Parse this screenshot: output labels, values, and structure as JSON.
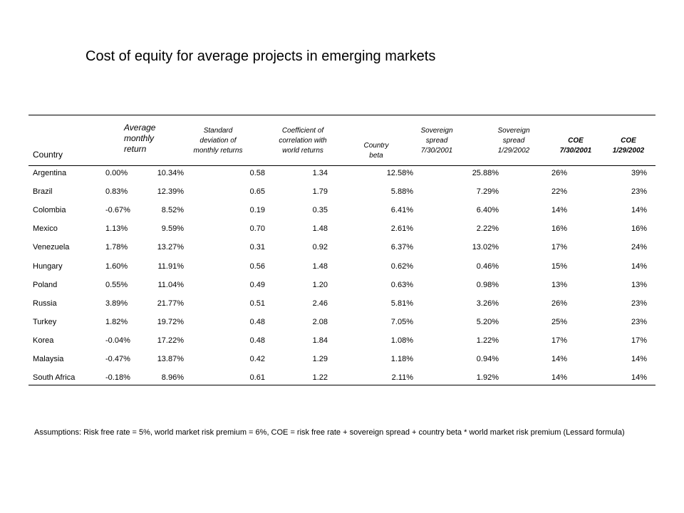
{
  "title": "Cost of equity for average projects in emerging markets",
  "columns": {
    "country": "Country",
    "avg_return": [
      "Average",
      "monthly",
      "return"
    ],
    "std_dev": [
      "Standard",
      "deviation of",
      "monthly returns"
    ],
    "correlation": [
      "Coefficient of",
      "correlation with",
      "world returns"
    ],
    "beta": [
      "Country",
      "beta"
    ],
    "spread_2001": [
      "Sovereign",
      "spread",
      "7/30/2001"
    ],
    "spread_2002": [
      "Sovereign",
      "spread",
      "1/29/2002"
    ],
    "coe_2001": [
      "COE",
      "7/30/2001"
    ],
    "coe_2002": [
      "COE",
      "1/29/2002"
    ]
  },
  "rows": [
    [
      "Argentina",
      "0.00%",
      "10.34%",
      "0.58",
      "1.34",
      "12.58%",
      "25.88%",
      "26%",
      "39%"
    ],
    [
      "Brazil",
      "0.83%",
      "12.39%",
      "0.65",
      "1.79",
      "5.88%",
      "7.29%",
      "22%",
      "23%"
    ],
    [
      "Colombia",
      "-0.67%",
      "8.52%",
      "0.19",
      "0.35",
      "6.41%",
      "6.40%",
      "14%",
      "14%"
    ],
    [
      "Mexico",
      "1.13%",
      "9.59%",
      "0.70",
      "1.48",
      "2.61%",
      "2.22%",
      "16%",
      "16%"
    ],
    [
      "Venezuela",
      "1.78%",
      "13.27%",
      "0.31",
      "0.92",
      "6.37%",
      "13.02%",
      "17%",
      "24%"
    ],
    [
      "Hungary",
      "1.60%",
      "11.91%",
      "0.56",
      "1.48",
      "0.62%",
      "0.46%",
      "15%",
      "14%"
    ],
    [
      "Poland",
      "0.55%",
      "11.04%",
      "0.49",
      "1.20",
      "0.63%",
      "0.98%",
      "13%",
      "13%"
    ],
    [
      "Russia",
      "3.89%",
      "21.77%",
      "0.51",
      "2.46",
      "5.81%",
      "3.26%",
      "26%",
      "23%"
    ],
    [
      "Turkey",
      "1.82%",
      "19.72%",
      "0.48",
      "2.08",
      "7.05%",
      "5.20%",
      "25%",
      "23%"
    ],
    [
      "Korea",
      "-0.04%",
      "17.22%",
      "0.48",
      "1.84",
      "1.08%",
      "1.22%",
      "17%",
      "17%"
    ],
    [
      "Malaysia",
      "-0.47%",
      "13.87%",
      "0.42",
      "1.29",
      "1.18%",
      "0.94%",
      "14%",
      "14%"
    ],
    [
      "South Africa",
      "-0.18%",
      "8.96%",
      "0.61",
      "1.22",
      "2.11%",
      "1.92%",
      "14%",
      "14%"
    ]
  ],
  "note": "Assumptions: Risk free rate = 5%, world market risk premium = 6%, COE = risk free rate + sovereign spread + country beta * world market risk premium (Lessard formula)"
}
